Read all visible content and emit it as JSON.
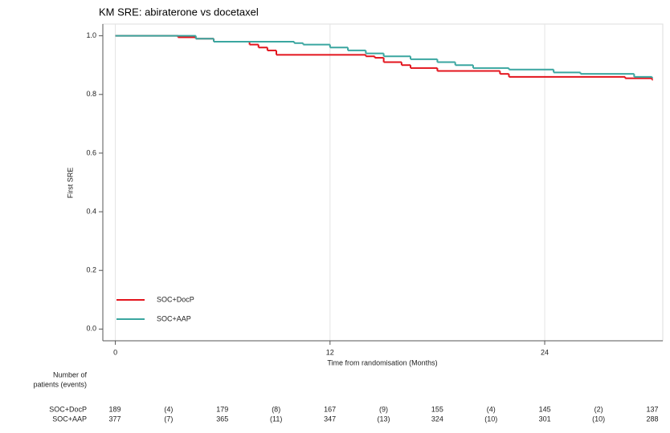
{
  "chart_data": {
    "type": "step",
    "title": "KM SRE: abiraterone vs docetaxel",
    "xlabel": "Time from randomisation (Months)",
    "ylabel": "First SRE",
    "xlim": [
      -0.7,
      30.6
    ],
    "xticks": [
      0,
      12,
      24
    ],
    "ylim": [
      -0.04,
      1.04
    ],
    "yticks": [
      {
        "value": 0,
        "label": "0.0"
      },
      0.2,
      0.4,
      0.6,
      0.8,
      {
        "value": 1,
        "label": "1.0"
      }
    ],
    "grid": true,
    "legend": "lower left",
    "series": [
      {
        "name": "SOC+DocP",
        "color": "#e3141d",
        "x": [
          0,
          3.5,
          4.5,
          5.5,
          7.5,
          8,
          8.5,
          9,
          14,
          14.5,
          15,
          16,
          16.5,
          18,
          21.5,
          22,
          28.5,
          30
        ],
        "values": [
          1.0,
          0.995,
          0.99,
          0.98,
          0.97,
          0.96,
          0.95,
          0.935,
          0.93,
          0.925,
          0.91,
          0.9,
          0.89,
          0.88,
          0.87,
          0.86,
          0.855,
          0.85
        ]
      },
      {
        "name": "SOC+AAP",
        "color": "#3aa6a0",
        "x": [
          0,
          4.5,
          5.5,
          10,
          10.5,
          12,
          13,
          14,
          15,
          16.5,
          18,
          19,
          20,
          22,
          24.5,
          26,
          29,
          30
        ],
        "values": [
          1.0,
          0.99,
          0.98,
          0.975,
          0.97,
          0.96,
          0.95,
          0.94,
          0.93,
          0.92,
          0.91,
          0.9,
          0.89,
          0.885,
          0.875,
          0.87,
          0.86,
          0.857
        ]
      }
    ]
  },
  "risk_table": {
    "title": [
      "Number of",
      "patients (events)"
    ],
    "rows": [
      {
        "label": "SOC+DocP",
        "cells": [
          "189",
          "(4)",
          "179",
          "(8)",
          "167",
          "(9)",
          "155",
          "(4)",
          "145",
          "(2)",
          "137"
        ]
      },
      {
        "label": "SOC+AAP",
        "cells": [
          "377",
          "(7)",
          "365",
          "(11)",
          "347",
          "(13)",
          "324",
          "(10)",
          "301",
          "(10)",
          "288"
        ]
      }
    ]
  }
}
